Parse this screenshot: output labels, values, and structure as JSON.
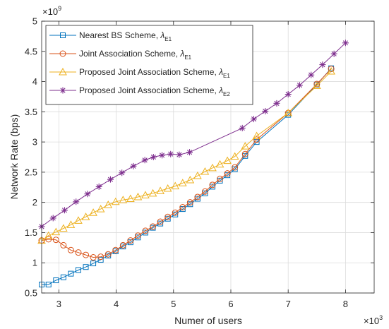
{
  "chart_data": {
    "type": "line",
    "xlabel": "Numer of users",
    "ylabel": "Network Rate (bps)",
    "x_exponent_base": "×10",
    "x_exponent_power": "3",
    "y_exponent_base": "×10",
    "y_exponent_power": "9",
    "xlim": [
      2.7,
      8.5
    ],
    "ylim": [
      0.5,
      5
    ],
    "xticks": [
      3,
      4,
      5,
      6,
      7,
      8
    ],
    "yticks": [
      0.5,
      1,
      1.5,
      2,
      2.5,
      3,
      3.5,
      4,
      4.5,
      5
    ],
    "ytick_labels": [
      "0.5",
      "1",
      "1.5",
      "2",
      "2.5",
      "3",
      "3.5",
      "4",
      "4.5",
      "5"
    ],
    "grid": true,
    "legend_position": "top-left",
    "series": [
      {
        "legend_prefix": "Nearest BS Scheme, ",
        "legend_lambda": "λ",
        "legend_sub": "E1",
        "color": "#0072bd",
        "marker": "square",
        "x": [
          2.7,
          2.82,
          2.95,
          3.08,
          3.21,
          3.34,
          3.47,
          3.6,
          3.73,
          3.86,
          3.99,
          4.12,
          4.25,
          4.38,
          4.51,
          4.64,
          4.77,
          4.9,
          5.03,
          5.16,
          5.29,
          5.42,
          5.55,
          5.68,
          5.81,
          5.94,
          6.07,
          6.25,
          6.45,
          7.0,
          7.5,
          7.75
        ],
        "y": [
          0.64,
          0.64,
          0.71,
          0.76,
          0.82,
          0.88,
          0.93,
          0.99,
          1.05,
          1.12,
          1.19,
          1.27,
          1.34,
          1.42,
          1.5,
          1.58,
          1.65,
          1.73,
          1.8,
          1.89,
          1.97,
          2.06,
          2.15,
          2.26,
          2.36,
          2.45,
          2.55,
          2.77,
          3.0,
          3.45,
          3.95,
          4.22
        ]
      },
      {
        "legend_prefix": " Joint Association Scheme, ",
        "legend_lambda": "λ",
        "legend_sub": "E1",
        "color": "#d95319",
        "marker": "circle",
        "x": [
          2.7,
          2.82,
          2.95,
          3.08,
          3.21,
          3.34,
          3.47,
          3.6,
          3.73,
          3.86,
          3.99,
          4.12,
          4.25,
          4.38,
          4.51,
          4.64,
          4.77,
          4.9,
          5.03,
          5.16,
          5.29,
          5.42,
          5.55,
          5.68,
          5.81,
          5.94,
          6.07,
          6.25,
          6.45,
          7.0,
          7.5,
          7.75
        ],
        "y": [
          1.37,
          1.39,
          1.38,
          1.29,
          1.21,
          1.17,
          1.13,
          1.09,
          1.1,
          1.14,
          1.21,
          1.29,
          1.37,
          1.45,
          1.53,
          1.6,
          1.68,
          1.76,
          1.83,
          1.92,
          2.0,
          2.09,
          2.18,
          2.29,
          2.39,
          2.48,
          2.58,
          2.8,
          3.04,
          3.48,
          3.96,
          4.21
        ]
      },
      {
        "legend_prefix": "Proposed Joint Association Scheme, ",
        "legend_lambda": "λ",
        "legend_sub": "E1",
        "color": "#edb120",
        "marker": "triangle",
        "x": [
          2.7,
          2.82,
          2.95,
          3.08,
          3.21,
          3.34,
          3.47,
          3.6,
          3.73,
          3.86,
          3.99,
          4.12,
          4.25,
          4.38,
          4.51,
          4.64,
          4.77,
          4.9,
          5.03,
          5.16,
          5.29,
          5.42,
          5.55,
          5.68,
          5.81,
          5.94,
          6.07,
          6.25,
          6.45,
          7.0,
          7.5,
          7.75
        ],
        "y": [
          1.37,
          1.45,
          1.51,
          1.57,
          1.63,
          1.7,
          1.76,
          1.83,
          1.89,
          1.96,
          2.01,
          2.04,
          2.06,
          2.09,
          2.12,
          2.15,
          2.19,
          2.23,
          2.27,
          2.32,
          2.37,
          2.44,
          2.51,
          2.57,
          2.63,
          2.69,
          2.76,
          2.93,
          3.1,
          3.48,
          3.93,
          4.17
        ]
      },
      {
        "legend_prefix": "Proposed Joint Association Scheme, ",
        "legend_lambda": "λ",
        "legend_sub": "E2",
        "color": "#7e2f8e",
        "marker": "star",
        "x": [
          2.7,
          2.9,
          3.1,
          3.3,
          3.5,
          3.7,
          3.9,
          4.1,
          4.3,
          4.5,
          4.65,
          4.8,
          4.95,
          5.1,
          5.28,
          6.2,
          6.4,
          6.6,
          6.8,
          7.0,
          7.2,
          7.4,
          7.6,
          7.8,
          8.0
        ],
        "y": [
          1.6,
          1.74,
          1.87,
          2.01,
          2.14,
          2.26,
          2.38,
          2.49,
          2.6,
          2.7,
          2.75,
          2.78,
          2.8,
          2.79,
          2.83,
          3.23,
          3.38,
          3.51,
          3.64,
          3.79,
          3.94,
          4.11,
          4.28,
          4.46,
          4.64
        ]
      }
    ]
  }
}
